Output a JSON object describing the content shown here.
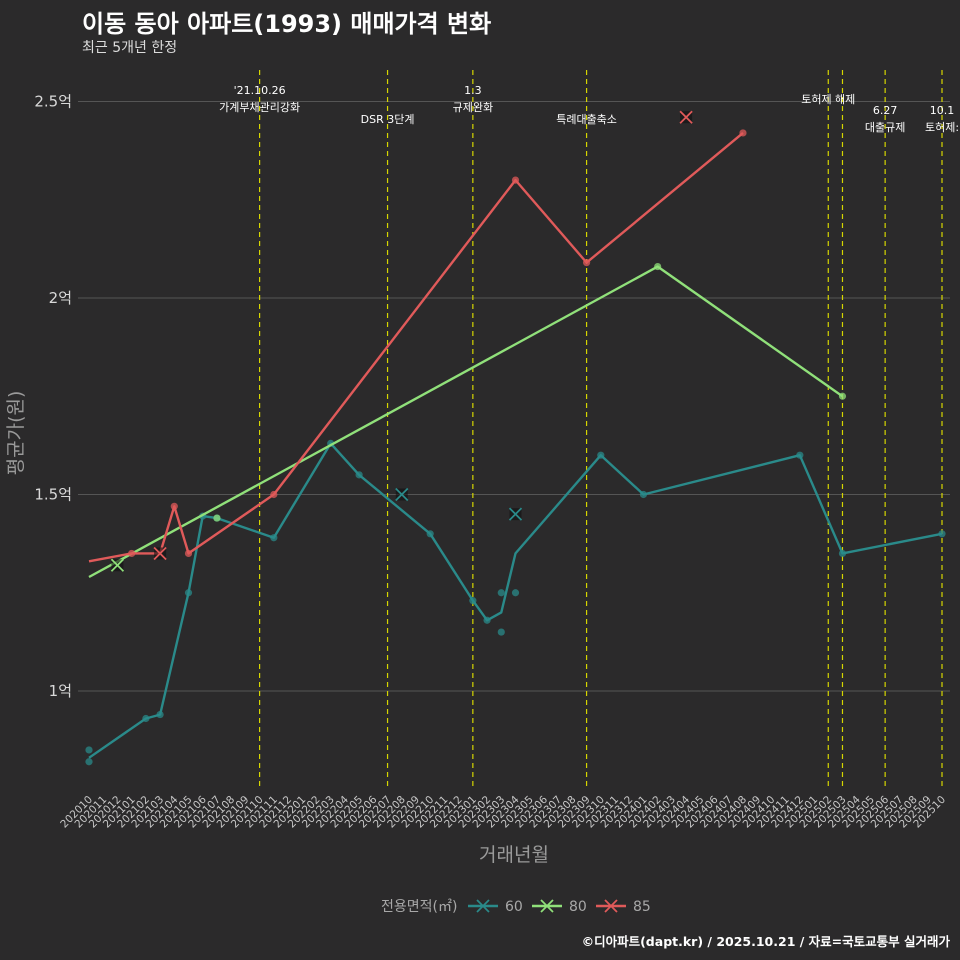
{
  "title": "이동 동아 아파트(1993) 매매가격 변화",
  "subtitle": "최근 5개년 한정",
  "caption": "©디아파트(dapt.kr) / 2025.10.21 / 자료=국토교통부 실거래가",
  "colors": {
    "bg": "#2b2a2b",
    "grid": "#555555",
    "vline": "#d6d600",
    "s60": "#2a8a8a",
    "s80": "#90e07a",
    "s85": "#e05a5a"
  },
  "chart_data": {
    "type": "line",
    "xlabel": "거래년월",
    "ylabel": "평균가(원)",
    "ylim": [
      0.75,
      2.55
    ],
    "yticks": [
      {
        "v": 1.0,
        "label": "1억"
      },
      {
        "v": 1.5,
        "label": "1.5억"
      },
      {
        "v": 2.0,
        "label": "2억"
      },
      {
        "v": 2.5,
        "label": "2.5억"
      }
    ],
    "categories": [
      "202010",
      "202011",
      "202012",
      "202101",
      "202102",
      "202103",
      "202104",
      "202105",
      "202106",
      "202107",
      "202108",
      "202109",
      "202110",
      "202111",
      "202112",
      "202201",
      "202202",
      "202203",
      "202204",
      "202205",
      "202206",
      "202207",
      "202208",
      "202209",
      "202210",
      "202211",
      "202212",
      "202301",
      "202302",
      "202303",
      "202304",
      "202305",
      "202306",
      "202307",
      "202308",
      "202309",
      "202310",
      "202311",
      "202312",
      "202401",
      "202402",
      "202403",
      "202404",
      "202405",
      "202406",
      "202407",
      "202408",
      "202409",
      "202410",
      "202411",
      "202412",
      "202501",
      "202502",
      "202503",
      "202504",
      "202505",
      "202506",
      "202507",
      "202508",
      "202509",
      "202510"
    ],
    "legend_title": "전용면적(㎡)",
    "series": [
      {
        "name": "60",
        "color": "#2a8a8a",
        "line": [
          [
            0,
            0.83
          ],
          [
            4,
            0.93
          ],
          [
            5,
            0.94
          ],
          [
            7,
            1.25
          ],
          [
            8,
            1.445
          ],
          [
            9,
            1.44
          ],
          [
            13,
            1.39
          ],
          [
            17,
            1.63
          ],
          [
            19,
            1.55
          ],
          [
            24,
            1.4
          ],
          [
            27,
            1.23
          ],
          [
            28,
            1.18
          ],
          [
            29,
            1.2
          ],
          [
            30,
            1.35
          ],
          [
            36,
            1.6
          ],
          [
            39,
            1.5
          ],
          [
            50,
            1.6
          ],
          [
            53,
            1.35
          ],
          [
            60,
            1.4
          ]
        ],
        "points": [
          [
            0,
            0.85
          ],
          [
            0,
            0.82
          ],
          [
            4,
            0.93
          ],
          [
            5,
            0.94
          ],
          [
            7,
            1.25
          ],
          [
            8,
            1.445
          ],
          [
            9,
            1.44
          ],
          [
            13,
            1.39
          ],
          [
            17,
            1.63
          ],
          [
            19,
            1.55
          ],
          [
            24,
            1.4
          ],
          [
            27,
            1.23
          ],
          [
            28,
            1.18
          ],
          [
            29,
            1.25
          ],
          [
            29,
            1.15
          ],
          [
            30,
            1.25
          ],
          [
            36,
            1.6
          ],
          [
            39,
            1.5
          ],
          [
            50,
            1.6
          ],
          [
            53,
            1.35
          ],
          [
            60,
            1.4
          ]
        ],
        "cancelled": [
          [
            22,
            1.5
          ],
          [
            30,
            1.45
          ]
        ]
      },
      {
        "name": "80",
        "color": "#90e07a",
        "line": [
          [
            0,
            1.29
          ],
          [
            40,
            2.08
          ],
          [
            53,
            1.75
          ]
        ],
        "points": [
          [
            9,
            1.44
          ],
          [
            40,
            2.08
          ],
          [
            53,
            1.75
          ]
        ],
        "cancelled": [
          [
            2,
            1.32
          ]
        ]
      },
      {
        "name": "85",
        "color": "#e05a5a",
        "line": [
          [
            0,
            1.33
          ],
          [
            3,
            1.35
          ],
          [
            5,
            1.35
          ],
          [
            6,
            1.47
          ],
          [
            7,
            1.35
          ],
          [
            13,
            1.5
          ],
          [
            30,
            2.3
          ],
          [
            35,
            2.09
          ],
          [
            46,
            2.42
          ]
        ],
        "points": [
          [
            3,
            1.35
          ],
          [
            6,
            1.47
          ],
          [
            7,
            1.35
          ],
          [
            13,
            1.5
          ],
          [
            30,
            2.3
          ],
          [
            35,
            2.09
          ],
          [
            46,
            2.42
          ]
        ],
        "cancelled": [
          [
            5,
            1.35
          ],
          [
            42,
            2.46
          ]
        ]
      }
    ],
    "annotations": [
      {
        "x": 12,
        "line1": "'21.10.26",
        "line2": "가계부채관리강화",
        "tier": "high"
      },
      {
        "x": 21,
        "line1": "DSR 3단계",
        "line2": "",
        "tier": "low"
      },
      {
        "x": 27,
        "line1": "1.3",
        "line2": "규제완화",
        "tier": "high"
      },
      {
        "x": 35,
        "line1": "특례대출축소",
        "line2": "",
        "tier": "low"
      },
      {
        "x": 52,
        "line1": "토허제 해제",
        "line2": "",
        "tier": "mid"
      },
      {
        "x": 53,
        "line1": "",
        "line2": "",
        "tier": "none"
      },
      {
        "x": 56,
        "line1": "6.27",
        "line2": "대출규제",
        "tier": "lowpair"
      },
      {
        "x": 60,
        "line1": "10.1",
        "line2": "토허제:",
        "tier": "lowpair"
      }
    ]
  }
}
